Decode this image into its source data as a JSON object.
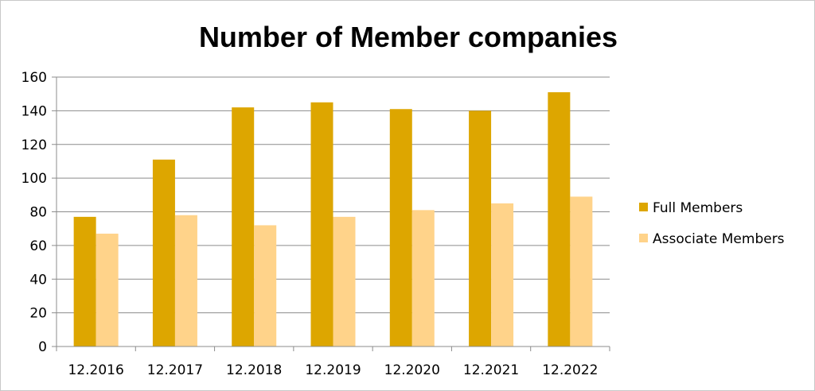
{
  "chart_data": {
    "type": "bar",
    "title": "Number of Member companies",
    "categories": [
      "12.2016",
      "12.2017",
      "12.2018",
      "12.2019",
      "12.2020",
      "12.2021",
      "12.2022"
    ],
    "series": [
      {
        "name": "Full Members",
        "color": "#DDA600",
        "values": [
          77,
          111,
          142,
          145,
          141,
          140,
          151
        ]
      },
      {
        "name": "Associate Members",
        "color": "#FFD38A",
        "values": [
          67,
          78,
          72,
          77,
          81,
          85,
          89
        ]
      }
    ],
    "ylim": [
      0,
      160
    ],
    "yticks": [
      0,
      20,
      40,
      60,
      80,
      100,
      120,
      140,
      160
    ],
    "grid": true,
    "legend_position": "right"
  }
}
